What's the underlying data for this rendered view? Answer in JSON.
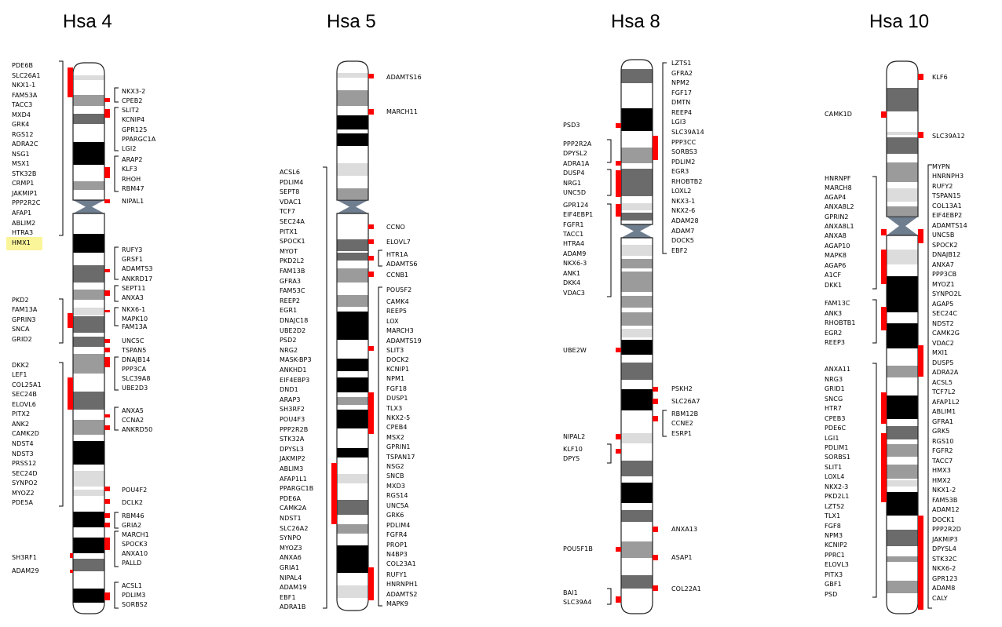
{
  "colors": {
    "band_dark": "#000000",
    "band_mid": "#6b6b6b",
    "band_light": "#9b9b9b",
    "band_pale": "#dcdcdc",
    "centromere": "#6f7e8f",
    "marker": "#ff0000",
    "highlight": "#fbf59a"
  },
  "chromosomes": [
    {
      "title": "Hsa 4",
      "left_genes": [
        "PDE6B",
        "SLC26A1",
        "NKX1-1",
        "FAM53A",
        "TACC3",
        "MXD4",
        "GRK4",
        "RGS12",
        "ADRA2C",
        "NSG1",
        "MSX1",
        "STK32B",
        "CRMP1",
        "JAKMIP1",
        "PPP2R2C",
        "AFAP1",
        "ABLIM2",
        "HTRA3",
        "HMX1",
        "PKD2",
        "FAM13A",
        "GPRIN3",
        "SNCA",
        "GRID2",
        "DKK2",
        "LEF1",
        "COL25A1",
        "SEC24B",
        "ELOVL6",
        "PITX2",
        "ANK2",
        "CAMK2D",
        "NDST4",
        "NDST3",
        "PRSS12",
        "SEC24D",
        "SYNPO2",
        "MYOZ2",
        "PDE5A",
        "SH3RF1",
        "ADAM29"
      ],
      "right_genes": [
        "NKX3-2",
        "CPEB2",
        "SLIT2",
        "KCNIP4",
        "GPR125",
        "PPARGC1A",
        "LGI2",
        "ARAP2",
        "KLF3",
        "RHOH",
        "RBM47",
        "NIPAL1",
        "RUFY3",
        "GRSF1",
        "ADAMTS3",
        "ANKRD17",
        "SEPT11",
        "ANXA3",
        "NKX6-1",
        "MAPK10",
        "FAM13A",
        "UNC5C",
        "TSPAN5",
        "DNAJB14",
        "PPP3CA",
        "SLC39A8",
        "UBE2D3",
        "ANXA5",
        "CCNA2",
        "ANKRD50",
        "POU4F2",
        "DCLK2",
        "RBM46",
        "GRIA2",
        "MARCH1",
        "SPOCK3",
        "ANXA10",
        "PALLD",
        "ACSL1",
        "PDLIM3",
        "SORBS2"
      ],
      "highlighted_gene": "HMX1"
    },
    {
      "title": "Hsa 5",
      "left_genes": [
        "ACSL6",
        "PDLIM4",
        "SEPT8",
        "VDAC1",
        "TCF7",
        "SEC24A",
        "PITX1",
        "SPOCK1",
        "MYOT",
        "PKD2L2",
        "FAM13B",
        "GFRA3",
        "FAM53C",
        "REEP2",
        "EGR1",
        "DNAJC18",
        "UBE2D2",
        "PSD2",
        "NRG2",
        "MASK-BP3",
        "ANKHD1",
        "EIF4EBP3",
        "DND1",
        "ARAP3",
        "SH3RF2",
        "POU4F3",
        "PPP2R2B",
        "STK32A",
        "DPYSL3",
        "JAKMIP2",
        "ABLIM3",
        "AFAP1L1",
        "PPARGC1B",
        "PDE6A",
        "CAMK2A",
        "NDST1",
        "SLC26A2",
        "SYNPO",
        "MYOZ3",
        "ANXA6",
        "GRIA1",
        "NIPAL4",
        "ADAM19",
        "EBF1",
        "ADRA1B"
      ],
      "right_genes": [
        "ADAMTS16",
        "MARCH11",
        "CCNO",
        "ELOVL7",
        "HTR1A",
        "ADAMTS6",
        "CCNB1",
        "POU5F2",
        "CAMK4",
        "REEP5",
        "LOX",
        "MARCH3",
        "ADAMTS19",
        "SLIT3",
        "DOCK2",
        "KCNIP1",
        "NPM1",
        "FGF18",
        "DUSP1",
        "TLX3",
        "NKX2-5",
        "CPEB4",
        "MSX2",
        "GPRIN1",
        "TSPAN17",
        "NSG2",
        "SNCB",
        "MXD3",
        "RGS14",
        "UNC5A",
        "GRK6",
        "PDLIM4",
        "FGFR4",
        "PROP1",
        "N4BP3",
        "COL23A1",
        "RUFY1",
        "HNRNPH1",
        "ADAMTS2",
        "MAPK9"
      ]
    },
    {
      "title": "Hsa 8",
      "left_genes": [
        "PSD3",
        "PPP2R2A",
        "DPYSL2",
        "ADRA1A",
        "DUSP4",
        "NRG1",
        "UNC5D",
        "GPR124",
        "EIF4EBP1",
        "FGFR1",
        "TACC1",
        "HTRA4",
        "ADAM9",
        "NKX6-3",
        "ANK1",
        "DKK4",
        "VDAC3",
        "UBE2W",
        "NIPAL2",
        "KLF10",
        "DPYS",
        "POU5F1B",
        "BAI1",
        "SLC39A4"
      ],
      "right_genes": [
        "LZTS1",
        "GFRA2",
        "NPM2",
        "FGF17",
        "DMTN",
        "REEP4",
        "LGI3",
        "SLC39A14",
        "PPP3CC",
        "SORBS3",
        "PDLIM2",
        "EGR3",
        "RHOBTB2",
        "LOXL2",
        "NKX3-1",
        "NKX2-6",
        "ADAM28",
        "ADAM7",
        "DOCK5",
        "EBF2",
        "PSKH2",
        "SLC26A7",
        "RBM12B",
        "CCNE2",
        "ESRP1",
        "ANXA13",
        "ASAP1",
        "COL22A1"
      ]
    },
    {
      "title": "Hsa 10",
      "left_genes": [
        "CAMK1D",
        "HNRNPF",
        "MARCH8",
        "AGAP4",
        "ANXA8L2",
        "GPRIN2",
        "ANXA8L1",
        "ANXA8",
        "AGAP10",
        "MAPK8",
        "AGAP6",
        "A1CF",
        "DKK1",
        "FAM13C",
        "ANK3",
        "RHOBTB1",
        "EGR2",
        "REEP3",
        "ANXA11",
        "NRG3",
        "GRID1",
        "SNCG",
        "HTR7",
        "CPEB3",
        "PDE6C",
        "LGI1",
        "PDLIM1",
        "SORBS1",
        "SLIT1",
        "LOXL4",
        "NKX2-3",
        "PKD2L1",
        "LZTS2",
        "TLX1",
        "FGF8",
        "NPM3",
        "KCNIP2",
        "PPRC1",
        "ELOVL3",
        "PITX3",
        "GBF1",
        "PSD"
      ],
      "right_genes": [
        "KLF6",
        "SLC39A12",
        "MYPN",
        "HNRNPH3",
        "RUFY2",
        "TSPAN15",
        "COL13A1",
        "EIF4EBP2",
        "ADAMTS14",
        "UNC5B",
        "SPOCK2",
        "DNAJB12",
        "ANXA7",
        "PPP3CB",
        "MYOZ1",
        "SYNPO2L",
        "AGAP5",
        "SEC24C",
        "NDST2",
        "CAMK2G",
        "VDAC2",
        "MXI1",
        "DUSP5",
        "ADRA2A",
        "ACSL5",
        "TCF7L2",
        "AFAP1L2",
        "ABLIM1",
        "GFRA1",
        "GRK5",
        "RGS10",
        "FGFR2",
        "TACC7",
        "HMX3",
        "HMX2",
        "NKX1-2",
        "FAM53B",
        "ADAM12",
        "DOCK1",
        "PPP2R2D",
        "JAKMIP3",
        "DPYSL4",
        "STK32C",
        "NKX6-2",
        "GPR123",
        "ADAM8",
        "CALY"
      ]
    }
  ]
}
